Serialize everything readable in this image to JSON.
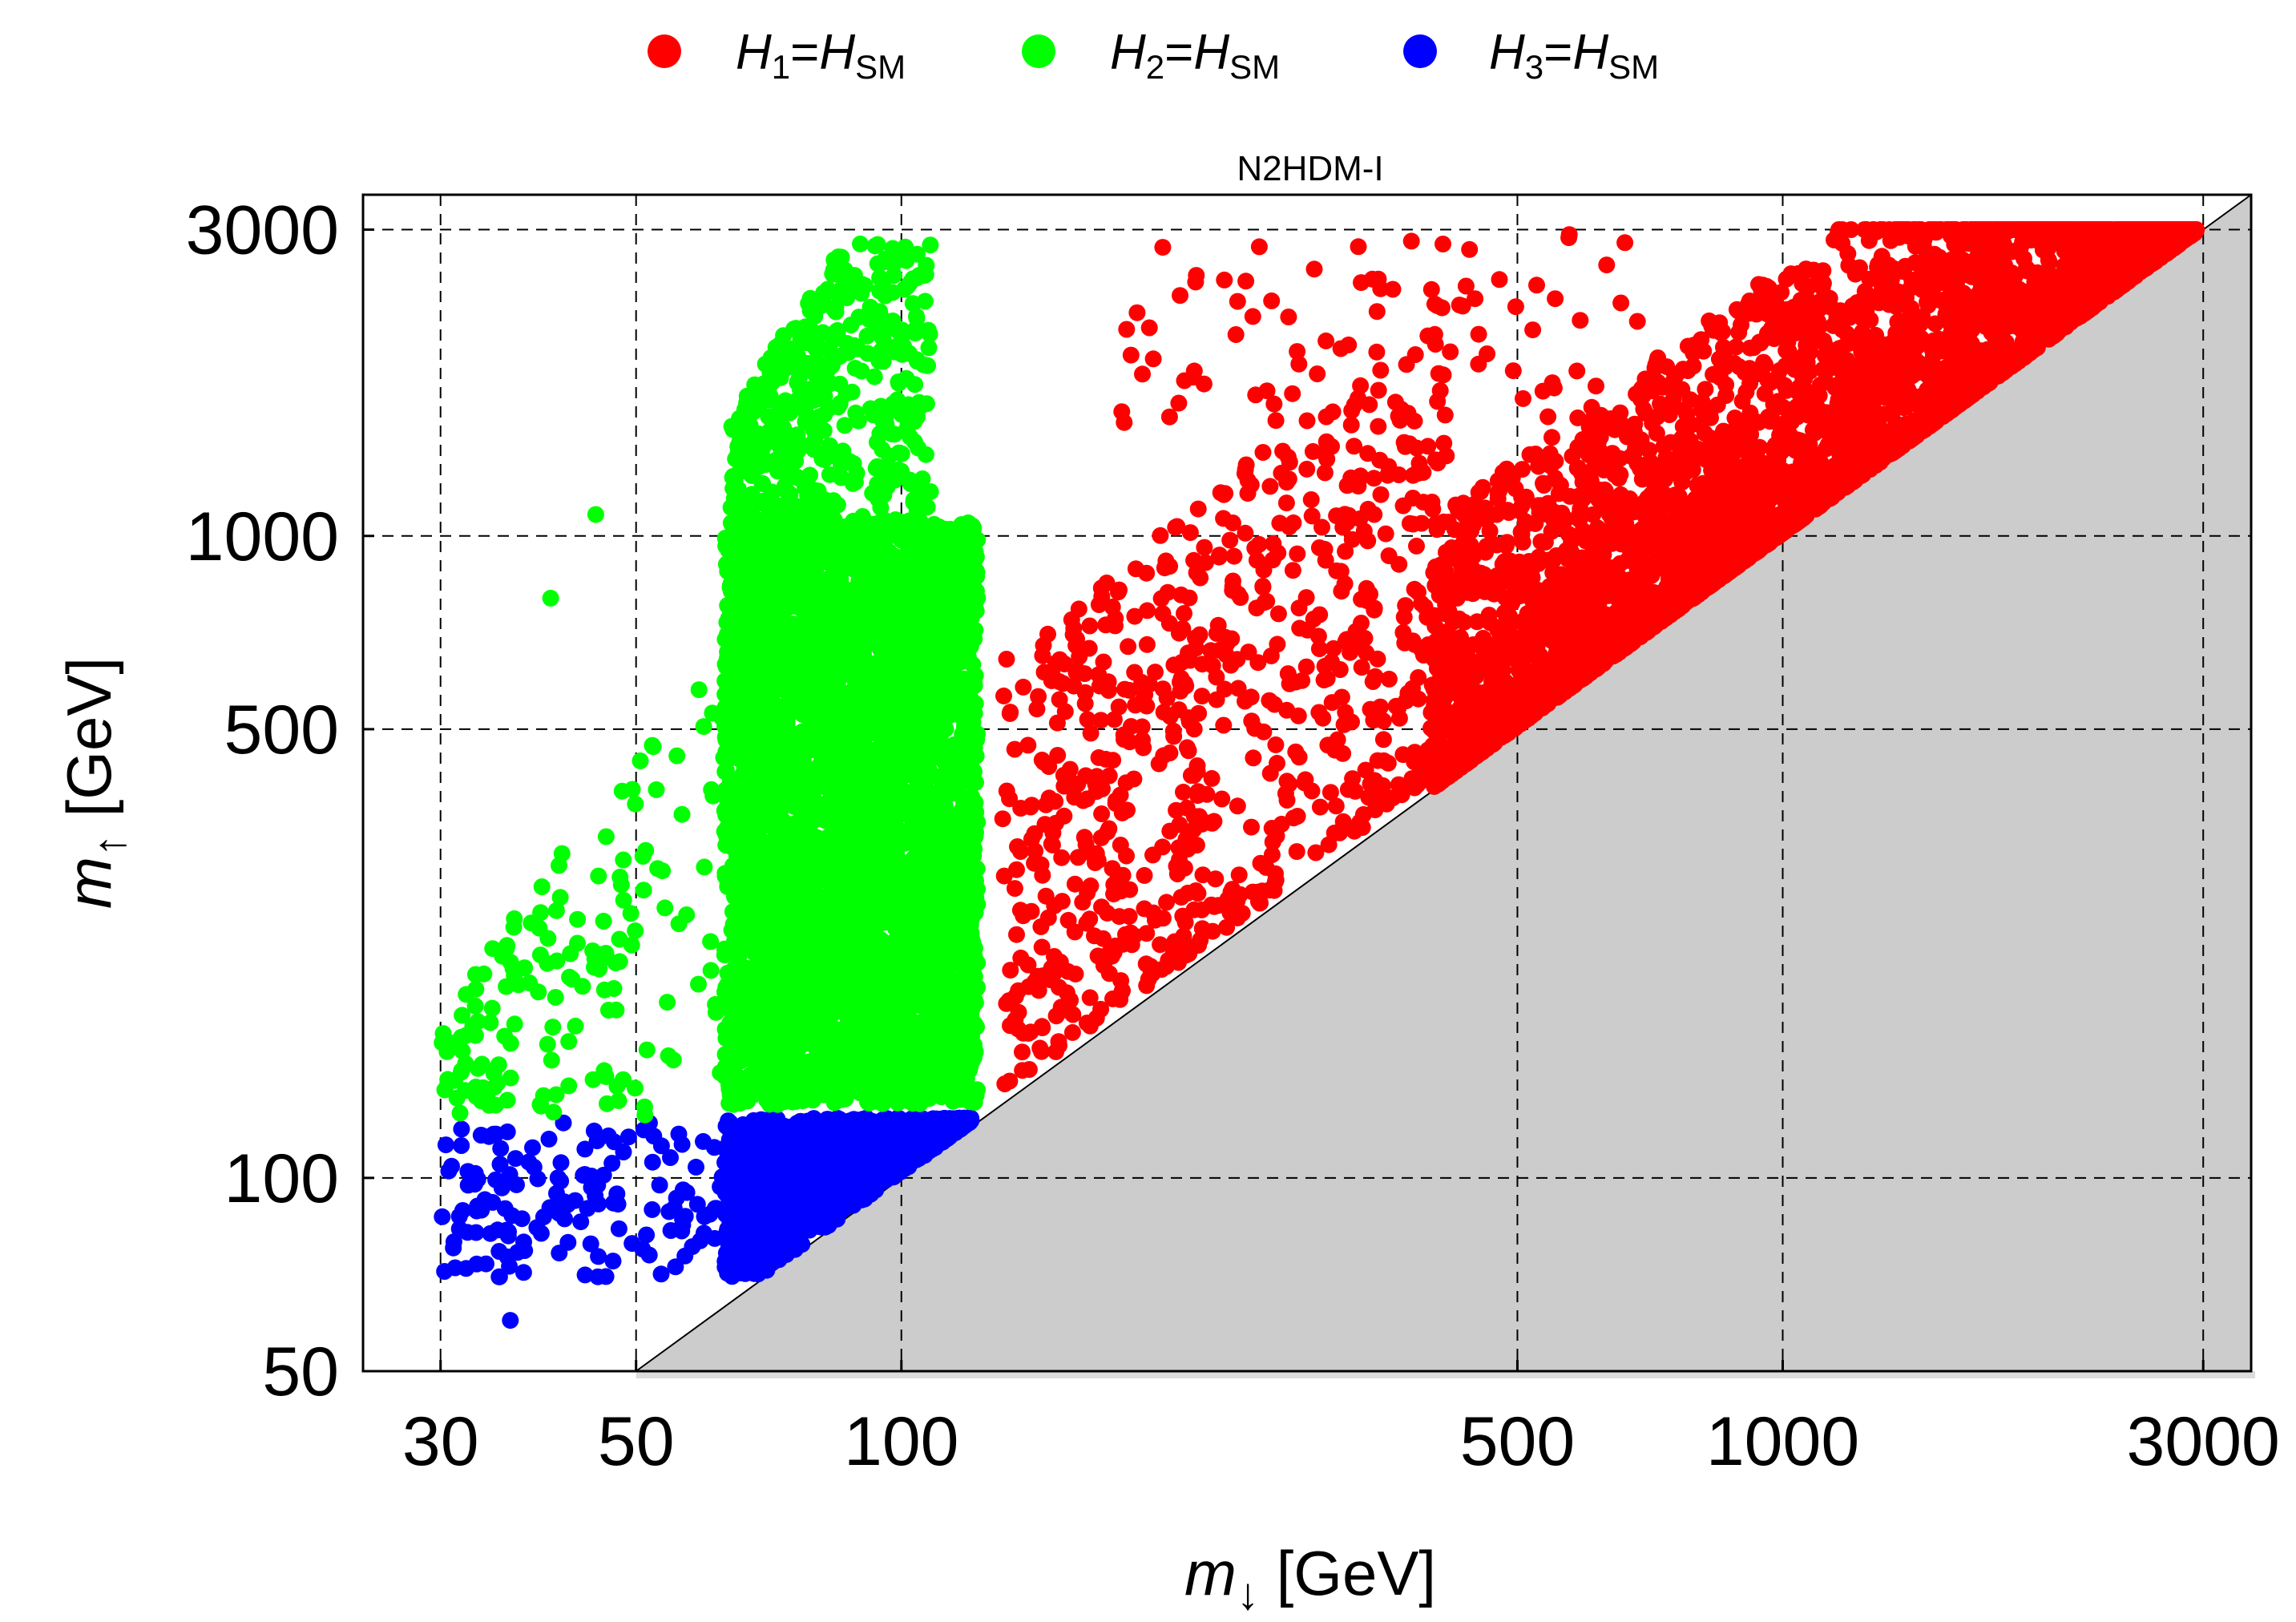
{
  "chart_data": {
    "type": "scatter",
    "title": "N2HDM-I",
    "xlabel": {
      "main": "m",
      "sub": "↓",
      "unit": " [GeV]"
    },
    "ylabel": {
      "main": "m",
      "sub": "↑",
      "unit": " [GeV]"
    },
    "xscale": "log",
    "yscale": "log",
    "xlim": [
      24.5,
      3400
    ],
    "ylim": [
      50,
      3400
    ],
    "xticks": [
      30,
      50,
      100,
      500,
      1000,
      3000
    ],
    "yticks": [
      50,
      100,
      500,
      1000,
      3000
    ],
    "grid": true,
    "legend_position": "top-center",
    "excluded_region": {
      "description": "m↑ < m↓",
      "color": "#cccccc"
    },
    "series": [
      {
        "name": "H1=HSM",
        "legend": {
          "H": "H",
          "sub": "1",
          "eq": "=",
          "H2": "H",
          "sub2": "SM"
        },
        "color": "#ff0000",
        "approx_count": 4500,
        "region_summary": {
          "x_range": [
            130,
            2950
          ],
          "y_max": 3000,
          "dense_band": "m↑ ≈ m↓ to 2.5·m↓ for m↓ > 400"
        }
      },
      {
        "name": "H2=HSM",
        "legend": {
          "H": "H",
          "sub": "2",
          "eq": "=",
          "H2": "H",
          "sub2": "SM"
        },
        "color": "#00ff00",
        "approx_count": 5000,
        "region_summary": {
          "x_range": [
            30,
            125
          ],
          "y_range": [
            125,
            2850
          ],
          "dense_block": {
            "x": [
              63,
              122
            ],
            "y": [
              130,
              1050
            ]
          }
        }
      },
      {
        "name": "H3=HSM",
        "legend": {
          "H": "H",
          "sub": "3",
          "eq": "=",
          "H2": "H",
          "sub2": "SM"
        },
        "color": "#0000ff",
        "approx_count": 1800,
        "region_summary": {
          "x_range": [
            30,
            120
          ],
          "y_range": [
            60,
            124
          ],
          "dense_block": {
            "x": [
              63,
              120
            ],
            "y": [
              70,
              124
            ]
          }
        }
      }
    ]
  }
}
